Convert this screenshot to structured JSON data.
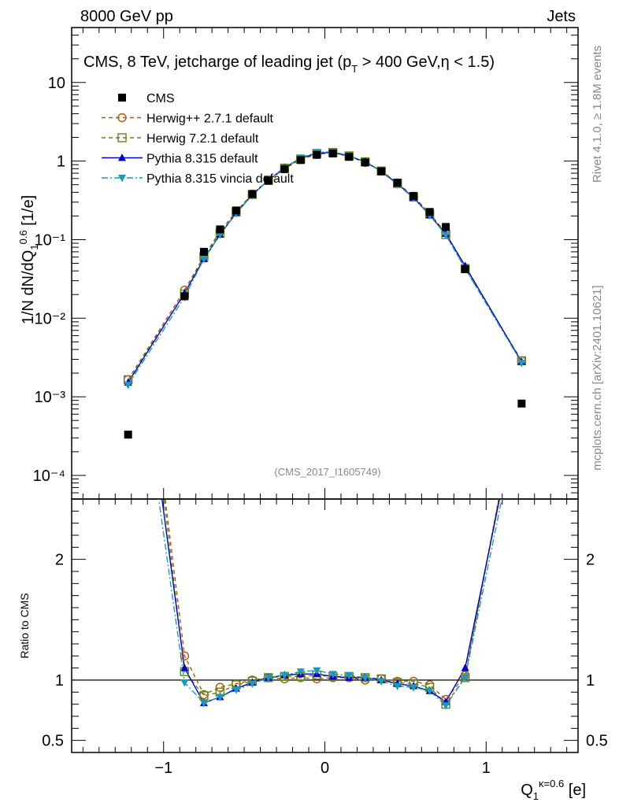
{
  "header": {
    "left": "8000 GeV pp",
    "right": "Jets"
  },
  "side": {
    "rivet": "Rivet 4.1.0, ≥ 1.8M events",
    "mcplots": "mcplots.cern.ch [arXiv:2401.10621]"
  },
  "chart_data": {
    "type": "line",
    "title": "CMS, 8 TeV, jetcharge of leading jet (p_T > 400 GeV, η < 1.5)",
    "analysis_id": "(CMS_2017_I1605749)",
    "ylabel": "1/N dN/dQ_1^0.6 [1/e]",
    "xlabel": "Q_1^{κ=0.6} [e]",
    "ratio_ylabel": "Ratio to CMS",
    "xlim": [
      -1.57,
      1.57
    ],
    "ylim": [
      5e-05,
      50
    ],
    "ratio_ylim": [
      0.4,
      2.5
    ],
    "x_ticks": [
      "−1",
      "0",
      "1"
    ],
    "y_ticks": [
      "10⁻⁴",
      "10⁻³",
      "10⁻²",
      "10⁻¹",
      "1",
      "10"
    ],
    "ratio_ticks": [
      "0.5",
      "1",
      "2"
    ],
    "x": [
      -1.22,
      -0.87,
      -0.75,
      -0.65,
      -0.55,
      -0.45,
      -0.35,
      -0.25,
      -0.15,
      -0.05,
      0.05,
      0.15,
      0.25,
      0.35,
      0.45,
      0.55,
      0.65,
      0.75,
      0.87,
      1.22
    ],
    "series": [
      {
        "name": "CMS",
        "color": "#000000",
        "marker": "square",
        "values": [
          0.00033,
          0.019,
          0.07,
          0.135,
          0.235,
          0.38,
          0.56,
          0.79,
          1.03,
          1.2,
          1.25,
          1.13,
          0.96,
          0.74,
          0.53,
          0.36,
          0.225,
          0.145,
          0.042,
          0.00082
        ]
      },
      {
        "name": "Herwig++ 2.7.1 default",
        "color": "#b8540b",
        "marker": "circle-open",
        "dash": "5,4",
        "ratio": [
          5.0,
          1.2,
          0.88,
          0.94,
          0.97,
          1.0,
          1.02,
          1.01,
          1.02,
          1.01,
          1.02,
          1.02,
          1.0,
          1.01,
          0.99,
          0.99,
          0.96,
          0.84,
          1.04,
          3.5
        ]
      },
      {
        "name": "Herwig 7.2.1 default",
        "color": "#5a8a17",
        "marker": "square-open",
        "dash": "5,4",
        "ratio": [
          5.0,
          1.07,
          0.87,
          0.9,
          0.96,
          0.99,
          1.02,
          1.03,
          1.03,
          1.04,
          1.03,
          1.03,
          1.02,
          1.01,
          0.98,
          0.97,
          0.94,
          0.8,
          1.02,
          3.5
        ]
      },
      {
        "name": "Pythia 8.315 default",
        "color": "#0000cc",
        "marker": "triangle-up",
        "ratio": [
          4.6,
          1.1,
          0.81,
          0.86,
          0.93,
          0.98,
          1.02,
          1.04,
          1.05,
          1.05,
          1.03,
          1.02,
          1.02,
          1.0,
          0.97,
          0.95,
          0.91,
          0.82,
          1.1,
          3.4
        ]
      },
      {
        "name": "Pythia 8.315 vincia default",
        "color": "#1a9bbd",
        "marker": "triangle-down",
        "dash": "8,3,2,3",
        "ratio": [
          4.3,
          0.98,
          0.81,
          0.86,
          0.92,
          0.97,
          1.02,
          1.04,
          1.07,
          1.08,
          1.05,
          1.04,
          1.02,
          0.99,
          0.95,
          0.94,
          0.91,
          0.79,
          1.02,
          3.3
        ]
      }
    ]
  }
}
